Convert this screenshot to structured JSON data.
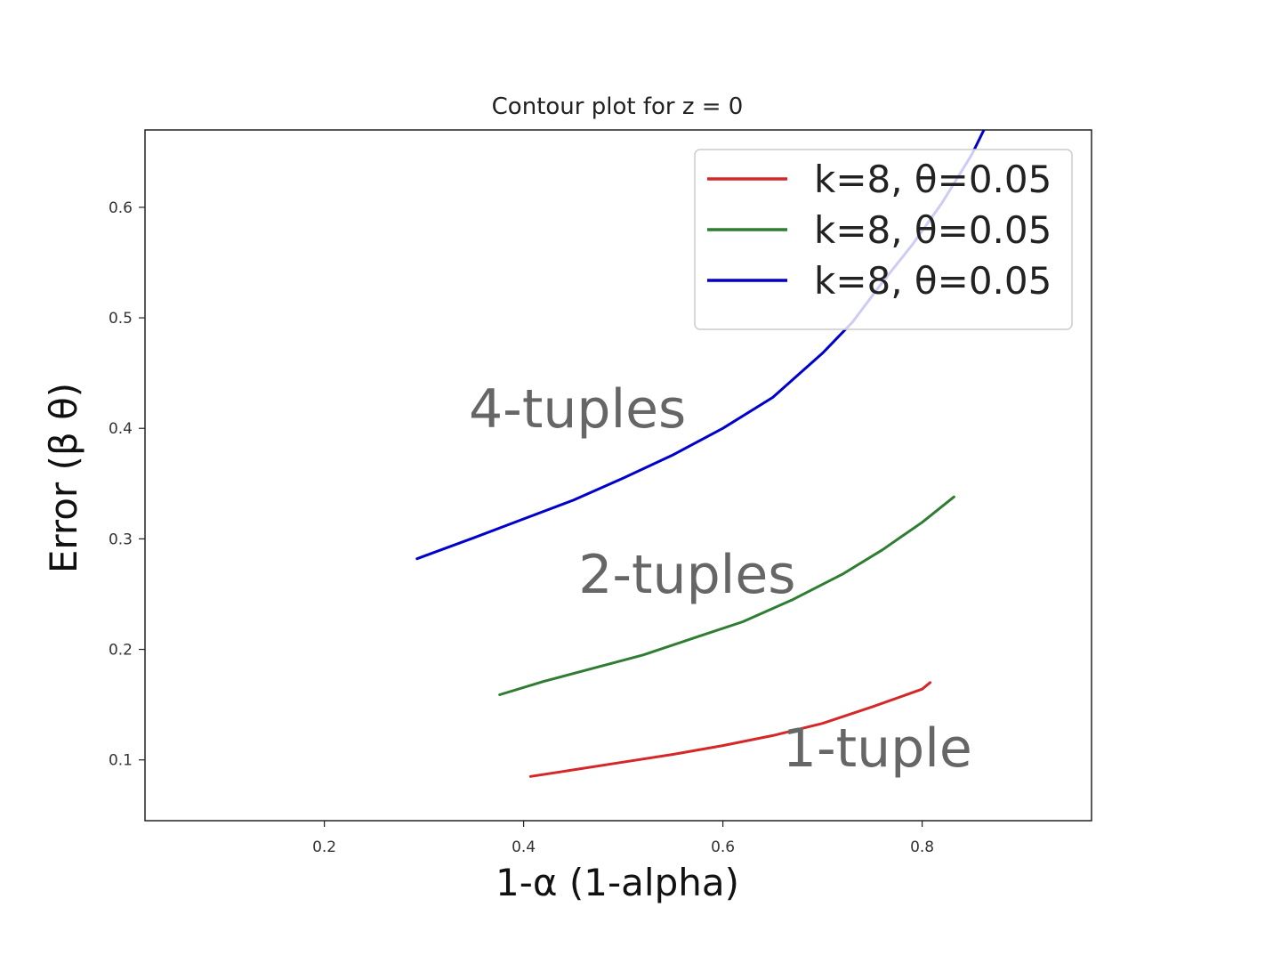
{
  "chart_data": {
    "type": "line",
    "title": "Contour plot for z = 0",
    "xlabel": "1-α (1-alpha)",
    "ylabel": "Error (β θ)",
    "xlim": [
      0.02,
      0.97
    ],
    "ylim": [
      0.045,
      0.67
    ],
    "xticks": [
      0.2,
      0.4,
      0.6,
      0.8
    ],
    "xtick_labels": [
      "0.2",
      "0.4",
      "0.6",
      "0.8"
    ],
    "yticks": [
      0.1,
      0.2,
      0.3,
      0.4,
      0.5,
      0.6
    ],
    "ytick_labels": [
      "0.1",
      "0.2",
      "0.3",
      "0.4",
      "0.5",
      "0.6"
    ],
    "grid": false,
    "legend_position": "top-right",
    "series": [
      {
        "name": "k=8, θ=0.05",
        "color": "#d62728",
        "x": [
          0.407,
          0.45,
          0.5,
          0.55,
          0.6,
          0.65,
          0.7,
          0.75,
          0.8,
          0.808
        ],
        "y": [
          0.085,
          0.091,
          0.098,
          0.105,
          0.113,
          0.122,
          0.133,
          0.148,
          0.164,
          0.17
        ]
      },
      {
        "name": "k=8, θ=0.05",
        "color": "#2e7d32",
        "x": [
          0.376,
          0.42,
          0.47,
          0.52,
          0.57,
          0.62,
          0.67,
          0.72,
          0.76,
          0.8,
          0.832
        ],
        "y": [
          0.159,
          0.171,
          0.183,
          0.195,
          0.21,
          0.225,
          0.245,
          0.268,
          0.29,
          0.315,
          0.338
        ]
      },
      {
        "name": "k=8, θ=0.05",
        "color": "#0000cc",
        "x": [
          0.293,
          0.35,
          0.4,
          0.45,
          0.5,
          0.55,
          0.6,
          0.65,
          0.7,
          0.73,
          0.76,
          0.79,
          0.82,
          0.85,
          0.862
        ],
        "y": [
          0.282,
          0.301,
          0.318,
          0.335,
          0.355,
          0.376,
          0.4,
          0.428,
          0.468,
          0.496,
          0.532,
          0.566,
          0.604,
          0.648,
          0.67
        ]
      }
    ],
    "annotations": [
      {
        "text": "1-tuple",
        "x": 0.66,
        "y": 0.094
      },
      {
        "text": "2-tuples",
        "x": 0.455,
        "y": 0.251
      },
      {
        "text": "4-tuples",
        "x": 0.345,
        "y": 0.401
      }
    ]
  }
}
